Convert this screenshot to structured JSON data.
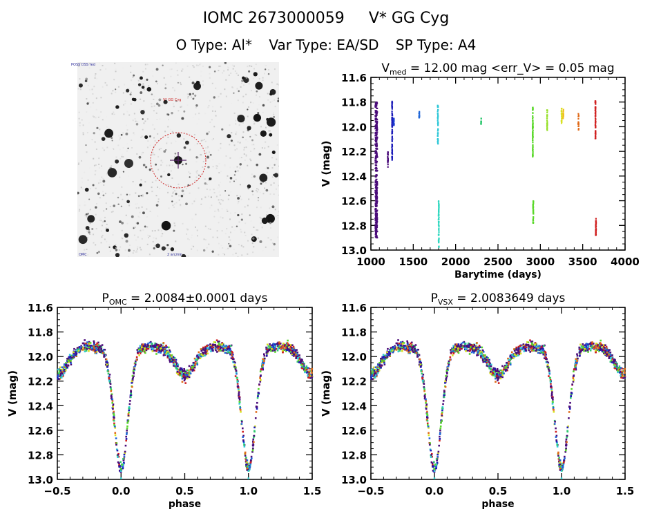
{
  "header": {
    "omc_id": "IOMC 2673000059",
    "star_name": "V* GG Cyg",
    "o_type": "O Type: Al*",
    "var_type": "Var Type: EA/SD",
    "sp_type": "SP Type: A4"
  },
  "finder_chart": {
    "target_label": "V* GG Cyg",
    "marker_color": "#cc2222",
    "crosshair_color": "#552266",
    "corner_labels": [
      "POSS DSS red",
      "OMC",
      "2 arcmin",
      "N/E"
    ]
  },
  "chart_data": [
    {
      "id": "lightcurve",
      "type": "scatter",
      "title": "V_med = 12.00 mag <err_V> = 0.05 mag",
      "title_parts": {
        "v": "V",
        "sub": "med",
        "rest": " = 12.00 mag <err_V> = 0.05 mag"
      },
      "xlabel": "Barytime (days)",
      "ylabel": "V (mag)",
      "xlim": [
        1000,
        4000
      ],
      "ylim": [
        13.0,
        11.6
      ],
      "y_inverted": true,
      "xticks": [
        1000,
        1500,
        2000,
        2500,
        3000,
        3500,
        4000
      ],
      "yticks": [
        11.6,
        11.8,
        12.0,
        12.2,
        12.4,
        12.6,
        12.8,
        13.0
      ],
      "ytick_labels": [
        "11.6",
        "11.8",
        "12.0",
        "12.2",
        "12.4",
        "12.6",
        "12.8",
        "13.0"
      ],
      "grid": false,
      "groups": [
        {
          "t": 1060,
          "color": "#4b0d7a",
          "vmin": 11.8,
          "vmax": 12.9,
          "dense": true
        },
        {
          "t": 1200,
          "color": "#4b0d7a",
          "vmin": 12.2,
          "vmax": 12.33
        },
        {
          "t": 1250,
          "color": "#1a1ab8",
          "vmin": 11.79,
          "vmax": 12.27
        },
        {
          "t": 1270,
          "color": "#1a3ad0",
          "vmin": 11.93,
          "vmax": 11.99
        },
        {
          "t": 1570,
          "color": "#1f66d8",
          "vmin": 11.87,
          "vmax": 11.93
        },
        {
          "t": 1790,
          "color": "#30c8d8",
          "vmin": 11.82,
          "vmax": 12.15
        },
        {
          "t": 1800,
          "color": "#30d8c0",
          "vmin": 12.6,
          "vmax": 12.98
        },
        {
          "t": 2300,
          "color": "#30c870",
          "vmin": 11.93,
          "vmax": 11.98
        },
        {
          "t": 2910,
          "color": "#5ad82a",
          "vmin": 11.84,
          "vmax": 12.25
        },
        {
          "t": 2915,
          "color": "#5ad82a",
          "vmin": 12.6,
          "vmax": 12.8
        },
        {
          "t": 3080,
          "color": "#96e028",
          "vmin": 11.86,
          "vmax": 12.03
        },
        {
          "t": 3250,
          "color": "#d8e020",
          "vmin": 11.85,
          "vmax": 11.98
        },
        {
          "t": 3270,
          "color": "#f0c020",
          "vmin": 11.86,
          "vmax": 11.94
        },
        {
          "t": 3450,
          "color": "#e06a18",
          "vmin": 11.89,
          "vmax": 12.03
        },
        {
          "t": 3650,
          "color": "#d01f1f",
          "vmin": 11.79,
          "vmax": 12.1
        },
        {
          "t": 3655,
          "color": "#d01f1f",
          "vmin": 12.72,
          "vmax": 12.88
        }
      ]
    },
    {
      "id": "phase_omc",
      "type": "scatter",
      "title": "P_OMC = 2.0084±0.0001 days",
      "title_parts": {
        "v": "P",
        "sub": "OMC",
        "rest": " = 2.0084±0.0001 days"
      },
      "xlabel": "phase",
      "ylabel": "V (mag)",
      "xlim": [
        -0.5,
        1.5
      ],
      "ylim": [
        13.0,
        11.6
      ],
      "y_inverted": true,
      "xticks": [
        -0.5,
        0.0,
        0.5,
        1.0,
        1.5
      ],
      "xtick_labels": [
        "-0.5",
        "0.0",
        "0.5",
        "1.0",
        "1.5"
      ],
      "yticks": [
        11.6,
        11.8,
        12.0,
        12.2,
        12.4,
        12.6,
        12.8,
        13.0
      ],
      "ytick_labels": [
        "11.6",
        "11.8",
        "12.0",
        "12.2",
        "12.4",
        "12.6",
        "12.8",
        "13.0"
      ],
      "grid": false,
      "model": {
        "max_mag": 11.95,
        "primary_depth": 0.93,
        "primary_width": 0.075,
        "secondary_depth": 0.17,
        "secondary_width": 0.1
      }
    },
    {
      "id": "phase_vsx",
      "type": "scatter",
      "title": "P_VSX = 2.0083649 days",
      "title_parts": {
        "v": "P",
        "sub": "VSX",
        "rest": " = 2.0083649 days"
      },
      "xlabel": "phase",
      "ylabel": "V (mag)",
      "xlim": [
        -0.5,
        1.5
      ],
      "ylim": [
        13.0,
        11.6
      ],
      "y_inverted": true,
      "xticks": [
        -0.5,
        0.0,
        0.5,
        1.0,
        1.5
      ],
      "xtick_labels": [
        "-0.5",
        "0.0",
        "0.5",
        "1.0",
        "1.5"
      ],
      "yticks": [
        11.6,
        11.8,
        12.0,
        12.2,
        12.4,
        12.6,
        12.8,
        13.0
      ],
      "ytick_labels": [
        "11.6",
        "11.8",
        "12.0",
        "12.2",
        "12.4",
        "12.6",
        "12.8",
        "13.0"
      ],
      "grid": false,
      "model": {
        "max_mag": 11.95,
        "primary_depth": 0.93,
        "primary_width": 0.075,
        "secondary_depth": 0.17,
        "secondary_width": 0.1
      }
    }
  ],
  "point_palette": [
    "#4b0d7a",
    "#4b0d7a",
    "#4b0d7a",
    "#4b0d7a",
    "#1a1ab8",
    "#1f66d8",
    "#30c8d8",
    "#30c870",
    "#5ad82a",
    "#d8e020",
    "#e06a18",
    "#d01f1f"
  ]
}
